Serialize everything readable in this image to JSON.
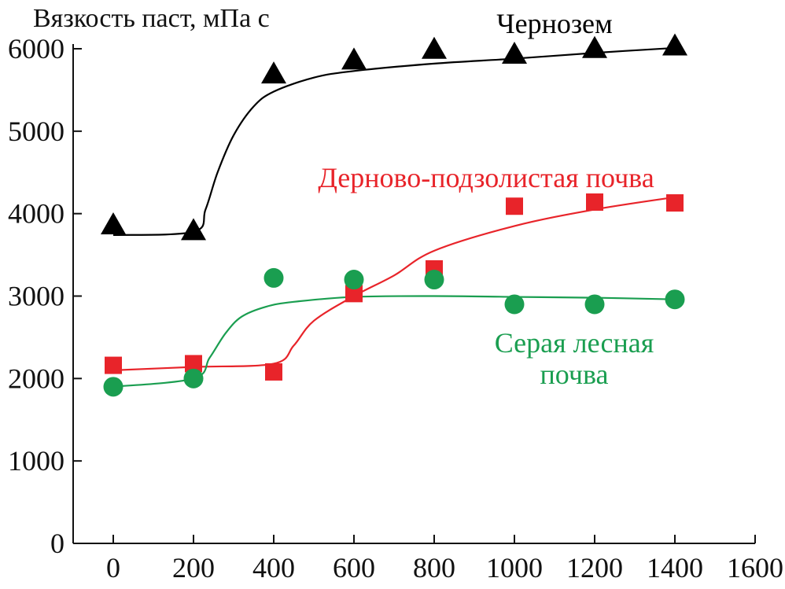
{
  "chart_data": {
    "type": "scatter",
    "ylabel": "Вязкость паст, мПа с",
    "xlabel": "",
    "xlim": [
      -100,
      1600
    ],
    "ylim": [
      0,
      6000
    ],
    "xticks": [
      0,
      200,
      400,
      600,
      800,
      1000,
      1200,
      1400,
      1600
    ],
    "yticks": [
      0,
      1000,
      2000,
      3000,
      4000,
      5000,
      6000
    ],
    "grid": false,
    "series": [
      {
        "name": "Чернозем",
        "label_lines": [
          "Чернозем"
        ],
        "marker": "triangle",
        "color": "#000000",
        "x": [
          0,
          200,
          400,
          600,
          800,
          1000,
          1200,
          1400
        ],
        "y": [
          3850,
          3780,
          5680,
          5850,
          5980,
          5920,
          5990,
          6020
        ],
        "fit_x": [
          0,
          200,
          230,
          260,
          300,
          350,
          400,
          500,
          600,
          800,
          1000,
          1200,
          1400
        ],
        "fit_y": [
          3740,
          3780,
          4050,
          4500,
          4950,
          5300,
          5480,
          5650,
          5730,
          5820,
          5880,
          5950,
          6010
        ]
      },
      {
        "name": "Дерново-подзолистая почва",
        "label_lines": [
          "Дерново-подзолистая почва"
        ],
        "marker": "square",
        "color": "#e8242a",
        "x": [
          0,
          200,
          400,
          600,
          800,
          1000,
          1200,
          1400
        ],
        "y": [
          2160,
          2180,
          2080,
          3030,
          3330,
          4090,
          4140,
          4130
        ],
        "fit_x": [
          0,
          200,
          400,
          450,
          500,
          600,
          700,
          800,
          1000,
          1200,
          1400
        ],
        "fit_y": [
          2100,
          2140,
          2180,
          2400,
          2700,
          3000,
          3250,
          3550,
          3850,
          4050,
          4200
        ],
        "fit_ramp": true
      },
      {
        "name": "Серая лесная почва",
        "label_lines": [
          "Серая лесная",
          "почва"
        ],
        "marker": "circle",
        "color": "#1a9e50",
        "x": [
          0,
          200,
          400,
          600,
          800,
          1000,
          1200,
          1400
        ],
        "y": [
          1900,
          2000,
          3220,
          3200,
          3200,
          2900,
          2900,
          2960
        ],
        "fit_x": [
          0,
          200,
          240,
          280,
          320,
          380,
          450,
          600,
          800,
          1000,
          1200,
          1400
        ],
        "fit_y": [
          1900,
          2000,
          2250,
          2550,
          2750,
          2870,
          2930,
          2990,
          3000,
          2990,
          2980,
          2960
        ]
      }
    ]
  }
}
